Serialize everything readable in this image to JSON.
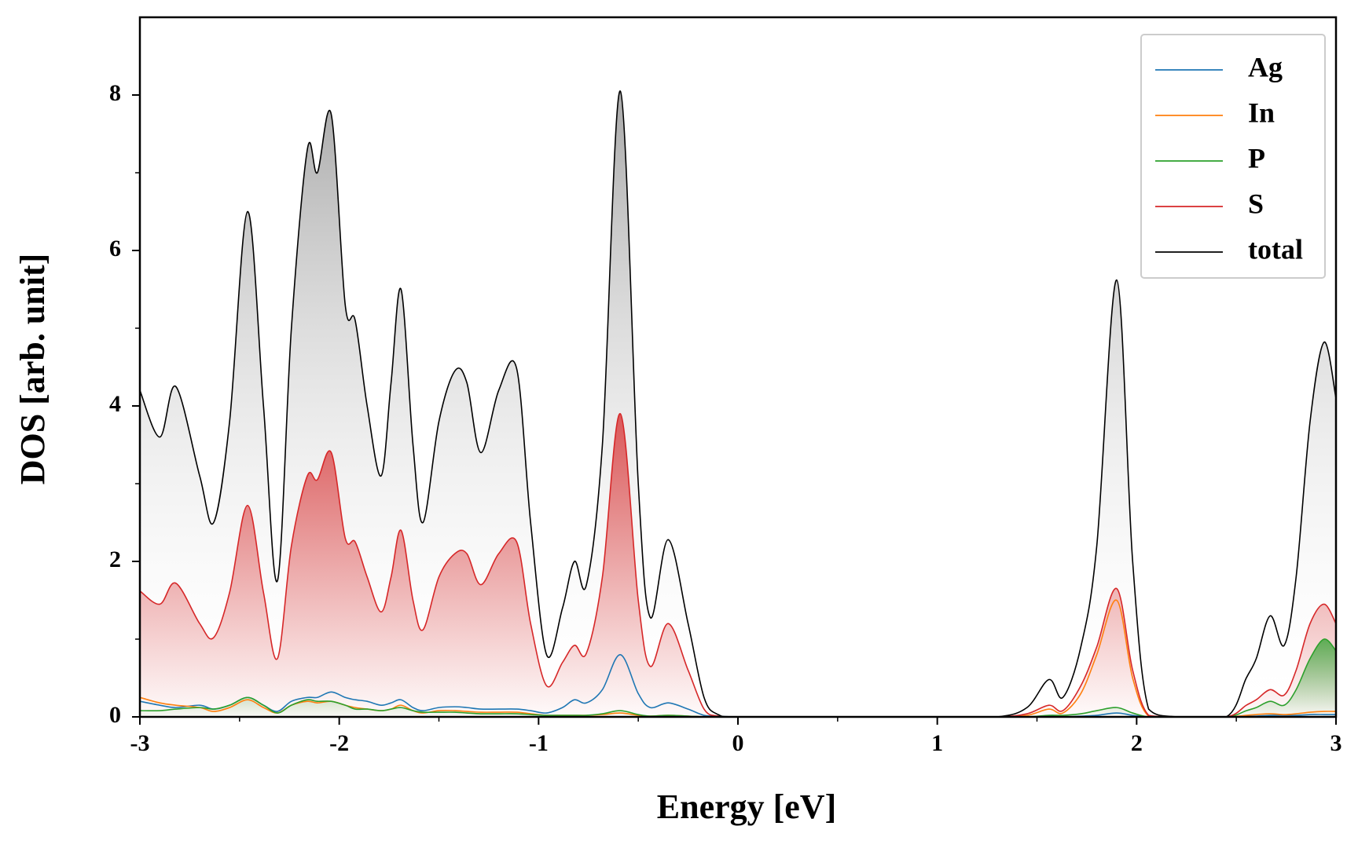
{
  "chart_data": {
    "type": "line",
    "xlabel": "Energy [eV]",
    "ylabel": "DOS [arb. unit]",
    "x": [
      -3,
      -2.9,
      -2.82,
      -2.7,
      -2.63,
      -2.55,
      -2.46,
      -2.38,
      -2.31,
      -2.24,
      -2.16,
      -2.11,
      -2.04,
      -1.97,
      -1.92,
      -1.86,
      -1.79,
      -1.74,
      -1.69,
      -1.63,
      -1.58,
      -1.5,
      -1.42,
      -1.36,
      -1.29,
      -1.2,
      -1.11,
      -1.04,
      -0.96,
      -0.88,
      -0.82,
      -0.76,
      -0.68,
      -0.59,
      -0.5,
      -0.44,
      -0.35,
      -0.25,
      -0.17,
      -0.1,
      0,
      0.5,
      1,
      1.3,
      1.45,
      1.56,
      1.63,
      1.72,
      1.8,
      1.9,
      1.98,
      2.06,
      2.2,
      2.45,
      2.55,
      2.6,
      2.67,
      2.74,
      2.8,
      2.87,
      2.94,
      3
    ],
    "series": [
      {
        "name": "Ag",
        "color": "#1f77b4",
        "filled": false,
        "values": [
          0.2,
          0.15,
          0.12,
          0.15,
          0.1,
          0.15,
          0.25,
          0.15,
          0.07,
          0.2,
          0.25,
          0.25,
          0.32,
          0.25,
          0.22,
          0.2,
          0.15,
          0.18,
          0.22,
          0.12,
          0.08,
          0.12,
          0.13,
          0.12,
          0.1,
          0.1,
          0.1,
          0.08,
          0.05,
          0.12,
          0.22,
          0.18,
          0.35,
          0.8,
          0.3,
          0.12,
          0.18,
          0.1,
          0.02,
          0.01,
          0,
          0,
          0,
          0,
          0,
          0.01,
          0,
          0.01,
          0.02,
          0.05,
          0.02,
          0,
          0,
          0,
          0.01,
          0.01,
          0.02,
          0.02,
          0.02,
          0.03,
          0.03,
          0.03
        ]
      },
      {
        "name": "In",
        "color": "#ff7f0e",
        "filled": false,
        "values": [
          0.25,
          0.18,
          0.15,
          0.12,
          0.07,
          0.12,
          0.22,
          0.12,
          0.05,
          0.15,
          0.2,
          0.18,
          0.2,
          0.15,
          0.12,
          0.1,
          0.08,
          0.1,
          0.15,
          0.08,
          0.05,
          0.08,
          0.08,
          0.07,
          0.06,
          0.06,
          0.06,
          0.04,
          0.02,
          0.02,
          0.02,
          0.02,
          0.03,
          0.05,
          0.02,
          0.01,
          0.02,
          0.01,
          0,
          0,
          0,
          0,
          0,
          0,
          0.02,
          0.1,
          0.05,
          0.3,
          0.8,
          1.5,
          0.5,
          0.01,
          0,
          0,
          0.02,
          0.03,
          0.04,
          0.03,
          0.04,
          0.06,
          0.07,
          0.07
        ]
      },
      {
        "name": "P",
        "color": "#2ca02c",
        "filled": true,
        "values": [
          0.08,
          0.08,
          0.1,
          0.12,
          0.1,
          0.15,
          0.25,
          0.15,
          0.05,
          0.15,
          0.22,
          0.2,
          0.2,
          0.15,
          0.1,
          0.1,
          0.08,
          0.1,
          0.12,
          0.08,
          0.06,
          0.06,
          0.06,
          0.05,
          0.04,
          0.04,
          0.04,
          0.03,
          0.02,
          0.02,
          0.02,
          0.02,
          0.04,
          0.08,
          0.03,
          0.01,
          0.02,
          0.01,
          0,
          0,
          0,
          0,
          0,
          0,
          0,
          0.02,
          0.02,
          0.04,
          0.08,
          0.12,
          0.05,
          0,
          0,
          0,
          0.08,
          0.12,
          0.2,
          0.15,
          0.35,
          0.75,
          1.0,
          0.85
        ]
      },
      {
        "name": "S",
        "color": "#d62728",
        "filled": true,
        "values": [
          1.62,
          1.45,
          1.72,
          1.2,
          1.02,
          1.6,
          2.72,
          1.6,
          0.75,
          2.2,
          3.1,
          3.05,
          3.4,
          2.3,
          2.25,
          1.8,
          1.35,
          1.8,
          2.4,
          1.5,
          1.12,
          1.8,
          2.1,
          2.1,
          1.7,
          2.1,
          2.25,
          1.2,
          0.4,
          0.7,
          0.92,
          0.82,
          1.8,
          3.9,
          1.5,
          0.65,
          1.2,
          0.6,
          0.1,
          0.01,
          0,
          0,
          0,
          0,
          0.04,
          0.15,
          0.08,
          0.4,
          0.9,
          1.65,
          0.6,
          0.02,
          0,
          0,
          0.15,
          0.22,
          0.35,
          0.28,
          0.6,
          1.2,
          1.45,
          1.2
        ]
      },
      {
        "name": "total",
        "color": "#000000",
        "filled": true,
        "values": [
          4.2,
          3.6,
          4.25,
          3.1,
          2.5,
          3.8,
          6.5,
          4.0,
          1.75,
          5.0,
          7.3,
          7.0,
          7.75,
          5.3,
          5.1,
          4.0,
          3.1,
          4.3,
          5.5,
          3.5,
          2.5,
          3.8,
          4.45,
          4.3,
          3.4,
          4.2,
          4.48,
          2.5,
          0.8,
          1.4,
          2.0,
          1.7,
          3.5,
          8.05,
          3.0,
          1.28,
          2.28,
          1.2,
          0.25,
          0.03,
          0,
          0,
          0,
          0,
          0.12,
          0.48,
          0.25,
          0.9,
          2.2,
          5.62,
          2.0,
          0.1,
          0,
          0,
          0.5,
          0.75,
          1.3,
          0.92,
          1.8,
          3.8,
          4.82,
          4.1
        ]
      }
    ],
    "xlim": [
      -3,
      3
    ],
    "xticks": [
      -3,
      -2,
      -1,
      0,
      1,
      2,
      3
    ],
    "xminor_ticks": [
      -2.5,
      -1.5,
      -0.5,
      0.5,
      1.5,
      2.5
    ],
    "ylim": [
      0,
      9
    ],
    "yticks": [
      0,
      2,
      4,
      6,
      8
    ],
    "yminor_ticks": [
      1,
      3,
      5,
      7
    ],
    "grid": false,
    "legend": "upper right"
  }
}
